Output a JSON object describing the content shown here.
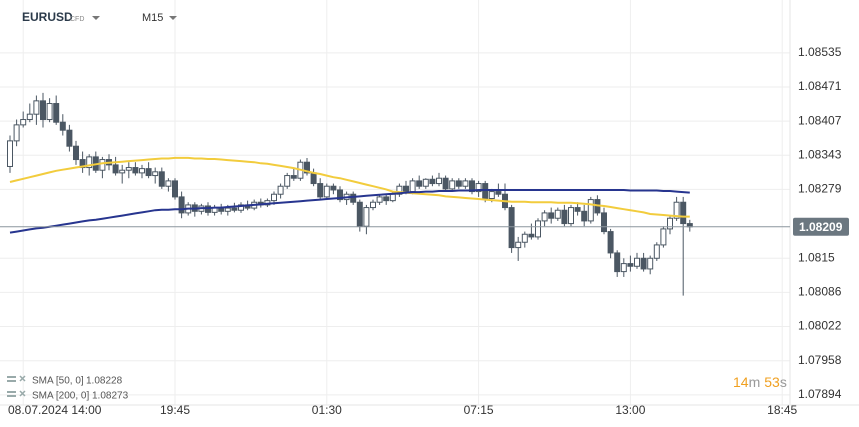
{
  "chart_data": {
    "type": "candlestick",
    "symbol": "EURUSD",
    "symbol_tag": "CFD",
    "timeframe": "M15",
    "categories": [
      null,
      null,
      "08.07.2024 14:00",
      null,
      null,
      null,
      null,
      null,
      null,
      null,
      null,
      null,
      null,
      null,
      null,
      null,
      null,
      null,
      null,
      null,
      null,
      null,
      null,
      null,
      null,
      "19:45",
      null,
      null,
      null,
      null,
      null,
      null,
      null,
      null,
      null,
      null,
      null,
      null,
      null,
      null,
      null,
      null,
      null,
      null,
      null,
      null,
      null,
      null,
      "01:30",
      null,
      null,
      null,
      null,
      null,
      null,
      null,
      null,
      null,
      null,
      null,
      null,
      null,
      null,
      null,
      null,
      null,
      null,
      null,
      null,
      null,
      null,
      "07:15",
      null,
      null,
      null,
      null,
      null,
      null,
      null,
      null,
      null,
      null,
      null,
      null,
      null,
      null,
      null,
      null,
      null,
      null,
      null,
      null,
      null,
      null,
      "13:00",
      null,
      null,
      null,
      null,
      null,
      null,
      null,
      null,
      null,
      null,
      null,
      null,
      null,
      null,
      null,
      null,
      null,
      null,
      null,
      null,
      null,
      null,
      "18:45"
    ],
    "open": [
      1.08322,
      1.0837,
      1.084,
      1.0841,
      1.0842,
      1.08445,
      1.0841,
      1.0844,
      1.08405,
      1.0839,
      1.0836,
      1.08335,
      1.0832,
      1.0834,
      1.08315,
      1.08335,
      1.08325,
      1.0831,
      1.08315,
      1.0832,
      1.0831,
      1.08318,
      1.08305,
      1.08312,
      1.08285,
      1.08295,
      1.08265,
      1.08235,
      1.0825,
      1.08238,
      1.08248,
      1.08236,
      1.08245,
      1.08238,
      1.08244,
      1.0824,
      1.0825,
      1.08244,
      1.08255,
      1.0825,
      1.08258,
      1.0827,
      1.08285,
      1.08305,
      1.083,
      1.0833,
      1.0831,
      1.0829,
      1.08265,
      1.08285,
      1.08278,
      1.0826,
      1.0827,
      1.08255,
      1.0821,
      1.08245,
      1.08255,
      1.08265,
      1.08258,
      1.0827,
      1.08285,
      1.08275,
      1.08295,
      1.08285,
      1.08298,
      1.0829,
      1.083,
      1.0828,
      1.08295,
      1.08285,
      1.08295,
      1.08275,
      1.0829,
      1.08262,
      1.08275,
      1.0827,
      1.08245,
      1.0817,
      1.0818,
      1.08195,
      1.0819,
      1.0822,
      1.08235,
      1.08225,
      1.0824,
      1.08215,
      1.08245,
      1.08238,
      1.0822,
      1.0826,
      1.08235,
      1.082,
      1.0816,
      1.08125,
      1.0814,
      1.08135,
      1.0815,
      1.0813,
      1.0815,
      1.08175,
      1.08205,
      1.08225,
      1.08255,
      1.08215,
      null,
      null,
      null,
      null,
      null,
      null,
      null,
      null,
      null,
      null,
      null,
      null,
      null,
      null
    ],
    "high": [
      1.0838,
      1.0841,
      1.08425,
      1.0844,
      1.08455,
      1.0846,
      1.0845,
      1.08455,
      1.0842,
      1.084,
      1.0837,
      1.0835,
      1.08345,
      1.0835,
      1.0834,
      1.08345,
      1.0834,
      1.08325,
      1.0833,
      1.0833,
      1.08325,
      1.0833,
      1.0832,
      1.0832,
      1.083,
      1.083,
      1.08275,
      1.08255,
      1.08255,
      1.08252,
      1.08255,
      1.0825,
      1.08252,
      1.0825,
      1.08254,
      1.08255,
      1.08258,
      1.0826,
      1.08262,
      1.08262,
      1.08275,
      1.0829,
      1.0831,
      1.0832,
      1.08335,
      1.08338,
      1.08318,
      1.083,
      1.0829,
      1.0829,
      1.08285,
      1.08275,
      1.08275,
      1.0826,
      1.0825,
      1.0826,
      1.0827,
      1.0827,
      1.08275,
      1.0829,
      1.08295,
      1.083,
      1.08305,
      1.083,
      1.08305,
      1.0831,
      1.08305,
      1.083,
      1.083,
      1.083,
      1.083,
      1.08295,
      1.08295,
      1.0828,
      1.0829,
      1.0829,
      1.0825,
      1.0819,
      1.082,
      1.08215,
      1.08225,
      1.0824,
      1.08245,
      1.08245,
      1.0825,
      1.0825,
      1.08255,
      1.0825,
      1.08265,
      1.08268,
      1.08245,
      1.08205,
      1.08165,
      1.0815,
      1.08155,
      1.0816,
      1.0816,
      1.08155,
      1.0818,
      1.0821,
      1.0823,
      1.08265,
      1.08265,
      1.08222,
      null,
      null,
      null,
      null,
      null,
      null,
      null,
      null,
      null,
      null,
      null,
      null,
      null,
      null
    ],
    "low": [
      1.0831,
      1.0836,
      1.08395,
      1.08405,
      1.084,
      1.08395,
      1.08405,
      1.084,
      1.0838,
      1.0835,
      1.08325,
      1.0831,
      1.08305,
      1.0831,
      1.083,
      1.08315,
      1.08305,
      1.0829,
      1.083,
      1.08305,
      1.083,
      1.083,
      1.0829,
      1.0828,
      1.08275,
      1.0826,
      1.08225,
      1.0823,
      1.08228,
      1.08232,
      1.0823,
      1.0823,
      1.08232,
      1.0823,
      1.08236,
      1.08235,
      1.0824,
      1.0824,
      1.08245,
      1.08246,
      1.0825,
      1.08262,
      1.0828,
      1.08295,
      1.08295,
      1.08305,
      1.08285,
      1.0826,
      1.0826,
      1.0827,
      1.08255,
      1.0825,
      1.0825,
      1.082,
      1.08195,
      1.0824,
      1.0825,
      1.0825,
      1.08255,
      1.08265,
      1.0827,
      1.0827,
      1.0828,
      1.0828,
      1.08285,
      1.08285,
      1.08275,
      1.08278,
      1.0828,
      1.0828,
      1.0827,
      1.08265,
      1.08255,
      1.08255,
      1.08265,
      1.0824,
      1.0816,
      1.08145,
      1.0817,
      1.08185,
      1.08185,
      1.0821,
      1.08215,
      1.0822,
      1.0821,
      1.0821,
      1.0823,
      1.0821,
      1.08215,
      1.0823,
      1.08195,
      1.0815,
      1.08115,
      1.08115,
      1.08125,
      1.0813,
      1.08125,
      1.0812,
      1.08145,
      1.0817,
      1.08195,
      1.0822,
      1.0808,
      1.082,
      null,
      null,
      null,
      null,
      null,
      null,
      null,
      null,
      null,
      null,
      null,
      null,
      null,
      null
    ],
    "close": [
      1.0837,
      1.084,
      1.0841,
      1.0842,
      1.08445,
      1.0841,
      1.0844,
      1.08405,
      1.0839,
      1.0836,
      1.08335,
      1.0832,
      1.0834,
      1.08315,
      1.08335,
      1.08325,
      1.0831,
      1.08315,
      1.0832,
      1.0831,
      1.08318,
      1.08305,
      1.08312,
      1.08285,
      1.08295,
      1.08265,
      1.08235,
      1.0825,
      1.08238,
      1.08248,
      1.08236,
      1.08245,
      1.08238,
      1.08244,
      1.0824,
      1.0825,
      1.08244,
      1.08255,
      1.0825,
      1.08258,
      1.0827,
      1.08285,
      1.08305,
      1.083,
      1.0833,
      1.0831,
      1.0829,
      1.08265,
      1.08285,
      1.08278,
      1.0826,
      1.0827,
      1.08255,
      1.0821,
      1.08245,
      1.08255,
      1.08265,
      1.08258,
      1.0827,
      1.08285,
      1.08275,
      1.08295,
      1.08285,
      1.08298,
      1.0829,
      1.083,
      1.0828,
      1.08295,
      1.08285,
      1.08295,
      1.08275,
      1.0829,
      1.08262,
      1.08275,
      1.0827,
      1.08245,
      1.0817,
      1.0818,
      1.08195,
      1.0819,
      1.0822,
      1.08235,
      1.08225,
      1.0824,
      1.08215,
      1.08245,
      1.08238,
      1.0822,
      1.0826,
      1.08235,
      1.082,
      1.0816,
      1.08125,
      1.0814,
      1.08135,
      1.0815,
      1.0813,
      1.0815,
      1.08175,
      1.08205,
      1.08225,
      1.08255,
      1.08215,
      1.08209,
      null,
      null,
      null,
      null,
      null,
      null,
      null,
      null,
      null,
      null,
      null,
      null,
      null,
      null
    ],
    "up_color": "#ffffff",
    "down_color": "#4b5763",
    "outline_color": "#4b5763",
    "series": [
      {
        "name": "SMA [50, 0]",
        "color": "#f2cc3d",
        "last_value": 1.08228,
        "values": [
          1.08293,
          1.08296,
          1.08299,
          1.08302,
          1.08305,
          1.08308,
          1.08311,
          1.08314,
          1.08316,
          1.08318,
          1.0832,
          1.08322,
          1.08324,
          1.08326,
          1.08328,
          1.08329,
          1.0833,
          1.08331,
          1.08332,
          1.08333,
          1.08334,
          1.08335,
          1.08336,
          1.08337,
          1.08337,
          1.08338,
          1.08338,
          1.08338,
          1.08337,
          1.08337,
          1.08336,
          1.08336,
          1.08335,
          1.08334,
          1.08333,
          1.08332,
          1.08331,
          1.0833,
          1.08328,
          1.08327,
          1.08325,
          1.08323,
          1.08321,
          1.08319,
          1.08316,
          1.08313,
          1.0831,
          1.08308,
          1.08305,
          1.08302,
          1.083,
          1.08297,
          1.08294,
          1.08291,
          1.08288,
          1.08285,
          1.08282,
          1.08279,
          1.08275,
          1.08274,
          1.08273,
          1.08272,
          1.08271,
          1.0827,
          1.08269,
          1.08268,
          1.08266,
          1.08265,
          1.08264,
          1.08263,
          1.08262,
          1.08261,
          1.0826,
          1.08259,
          1.08258,
          1.08257,
          1.08256,
          1.08256,
          1.08256,
          1.08255,
          1.08255,
          1.08255,
          1.08255,
          1.08254,
          1.08254,
          1.08254,
          1.08253,
          1.08252,
          1.08251,
          1.08249,
          1.08248,
          1.08246,
          1.08244,
          1.08242,
          1.0824,
          1.08238,
          1.08236,
          1.08233,
          1.08232,
          1.08231,
          1.0823,
          1.08229,
          1.08228,
          1.08228,
          null,
          null,
          null,
          null,
          null,
          null,
          null,
          null,
          null,
          null,
          null,
          null,
          null,
          null
        ]
      },
      {
        "name": "SMA [200, 0]",
        "color": "#27358f",
        "last_value": 1.08273,
        "values": [
          1.08198,
          1.082,
          1.08202,
          1.08204,
          1.08206,
          1.08207,
          1.08209,
          1.08211,
          1.08213,
          1.08215,
          1.08217,
          1.08219,
          1.08221,
          1.08222,
          1.08224,
          1.08226,
          1.08228,
          1.0823,
          1.08232,
          1.08234,
          1.08236,
          1.08238,
          1.0824,
          1.08241,
          1.08241,
          1.08242,
          1.08242,
          1.08243,
          1.08243,
          1.08244,
          1.08244,
          1.08245,
          1.08245,
          1.08246,
          1.08247,
          1.08248,
          1.08249,
          1.0825,
          1.08251,
          1.08252,
          1.08253,
          1.08254,
          1.08255,
          1.08256,
          1.08257,
          1.08258,
          1.08259,
          1.0826,
          1.08261,
          1.08262,
          1.08263,
          1.08264,
          1.08265,
          1.08266,
          1.08267,
          1.08268,
          1.08269,
          1.0827,
          1.08271,
          1.08272,
          1.08273,
          1.08274,
          1.08274,
          1.08275,
          1.08275,
          1.08276,
          1.08276,
          1.08276,
          1.08277,
          1.08277,
          1.08277,
          1.08278,
          1.08278,
          1.08278,
          1.08278,
          1.08278,
          1.08278,
          1.08278,
          1.08278,
          1.08278,
          1.08278,
          1.08278,
          1.08278,
          1.08278,
          1.08278,
          1.08278,
          1.08278,
          1.08278,
          1.08278,
          1.08278,
          1.08278,
          1.08278,
          1.08278,
          1.08278,
          1.08277,
          1.08277,
          1.08277,
          1.08277,
          1.08277,
          1.08276,
          1.08276,
          1.08275,
          1.08274,
          1.08273,
          null,
          null,
          null,
          null,
          null,
          null,
          null,
          null,
          null,
          null,
          null,
          null,
          null,
          null
        ]
      }
    ],
    "current_price": 1.08209,
    "ylim": [
      1.07875,
      1.08634
    ],
    "yticks": [
      1.07894,
      1.07958,
      1.08022,
      1.08086,
      1.0815,
      1.08279,
      1.08343,
      1.08407,
      1.08471,
      1.08535
    ],
    "grid": true,
    "countdown": {
      "minutes": "14",
      "minutes_unit": "m",
      "seconds": "53",
      "seconds_unit": "s"
    }
  }
}
